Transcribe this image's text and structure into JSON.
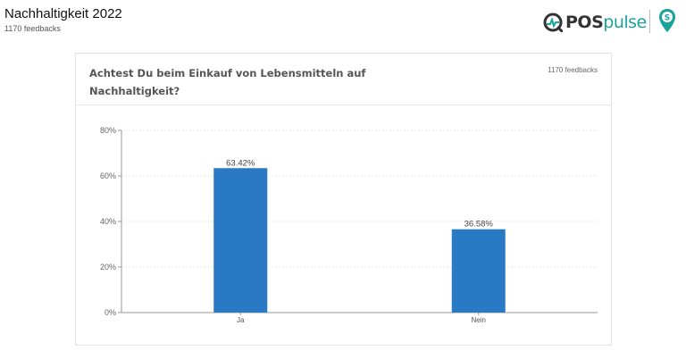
{
  "header": {
    "title": "Nachhaltigkeit 2022",
    "subtitle": "1170 feedbacks"
  },
  "brand": {
    "name_bold": "POS",
    "name_light": "pulse",
    "icons": [
      "pospulse-logo-icon",
      "location-pin-icon"
    ],
    "colors": {
      "teal": "#1aa39a",
      "dark": "#333333"
    }
  },
  "card": {
    "title": "Achtest Du beim Einkauf von Lebensmitteln auf Nachhaltigkeit?",
    "count": "1170 feedbacks"
  },
  "chart_data": {
    "type": "bar",
    "categories": [
      "Ja",
      "Nein"
    ],
    "values": [
      63.42,
      36.58
    ],
    "value_labels": [
      "63.42%",
      "36.58%"
    ],
    "ylim": [
      0,
      80
    ],
    "yticks": [
      "0%",
      "20%",
      "40%",
      "60%",
      "80%"
    ],
    "grid": true,
    "color": "#2979c5",
    "xlabel": "",
    "ylabel": ""
  }
}
